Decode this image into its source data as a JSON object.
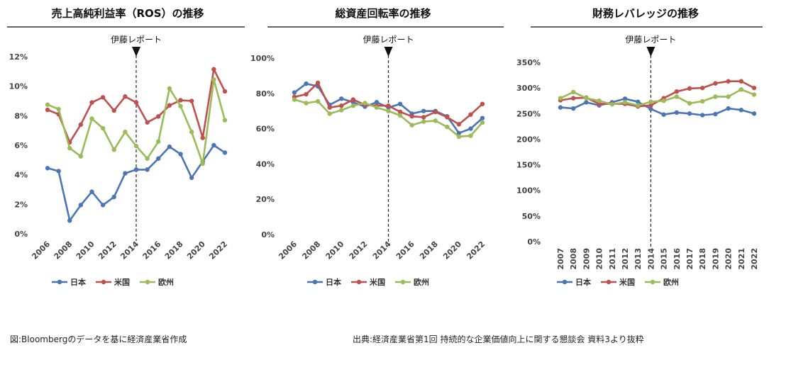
{
  "colors": {
    "japan": "#4a76b4",
    "us": "#c0504d",
    "europe": "#9bbb59",
    "rule": "#333333"
  },
  "annotation": "伊藤レポート",
  "caption_left": "図:Bloombergのデータを基に経済産業省作成",
  "caption_right": "出典:経済産業省第1回 持続的な企業価値向上に関する懇談会 資料3より抜粋",
  "chart_data": [
    {
      "type": "line",
      "title": "売上高純利益率（ROS）の推移",
      "x": [
        2006,
        2007,
        2008,
        2009,
        2010,
        2011,
        2012,
        2013,
        2014,
        2015,
        2016,
        2017,
        2018,
        2019,
        2020,
        2021,
        2022
      ],
      "xtick_labels": [
        "2006",
        "2008",
        "2010",
        "2012",
        "2014",
        "2016",
        "2018",
        "2020",
        "2022"
      ],
      "ytick_labels": [
        "0%",
        "2%",
        "4%",
        "6%",
        "8%",
        "10%",
        "12%"
      ],
      "ylim": [
        0,
        12
      ],
      "annotation_x": 2014,
      "legend": [
        "日本",
        "米国",
        "欧州"
      ],
      "series": [
        {
          "name": "日本",
          "values": [
            4.45,
            4.25,
            0.9,
            1.95,
            2.85,
            1.95,
            2.5,
            4.1,
            4.35,
            4.35,
            5.1,
            5.9,
            5.4,
            3.8,
            4.9,
            6.0,
            5.5
          ]
        },
        {
          "name": "米国",
          "values": [
            8.4,
            8.1,
            6.2,
            7.4,
            8.9,
            9.25,
            8.35,
            9.3,
            8.9,
            7.55,
            7.95,
            8.7,
            9.05,
            9.0,
            6.5,
            11.15,
            9.65
          ]
        },
        {
          "name": "欧州",
          "values": [
            8.75,
            8.45,
            5.8,
            5.25,
            7.8,
            7.15,
            5.7,
            6.9,
            5.95,
            5.1,
            6.25,
            9.85,
            8.65,
            6.9,
            4.75,
            10.45,
            7.7
          ]
        }
      ]
    },
    {
      "type": "line",
      "title": "総資産回転率の推移",
      "x": [
        2006,
        2007,
        2008,
        2009,
        2010,
        2011,
        2012,
        2013,
        2014,
        2015,
        2016,
        2017,
        2018,
        2019,
        2020,
        2021,
        2022
      ],
      "xtick_labels": [
        "2006",
        "2008",
        "2010",
        "2012",
        "2014",
        "2016",
        "2018",
        "2020",
        "2022"
      ],
      "ytick_labels": [
        "0%",
        "20%",
        "40%",
        "60%",
        "80%",
        "100%"
      ],
      "ylim": [
        0,
        100
      ],
      "annotation_x": 2014,
      "legend": [
        "日本",
        "米国",
        "欧州"
      ],
      "series": [
        {
          "name": "日本",
          "values": [
            80.5,
            85.5,
            84.0,
            73.5,
            77.0,
            75.0,
            72.5,
            75.0,
            72.0,
            74.0,
            68.5,
            70.0,
            70.0,
            67.0,
            57.5,
            60.0,
            66.0
          ]
        },
        {
          "name": "米国",
          "values": [
            78.0,
            79.5,
            86.0,
            72.0,
            73.0,
            76.5,
            73.5,
            73.0,
            73.0,
            69.5,
            67.0,
            66.5,
            69.5,
            66.5,
            62.5,
            68.0,
            74.0
          ]
        },
        {
          "name": "欧州",
          "values": [
            76.5,
            74.5,
            75.5,
            68.5,
            70.5,
            73.0,
            74.5,
            72.0,
            70.0,
            67.5,
            62.0,
            64.0,
            64.5,
            61.0,
            55.5,
            56.0,
            63.5
          ]
        }
      ]
    },
    {
      "type": "line",
      "title": "財務レバレッジの推移",
      "x": [
        2007,
        2008,
        2009,
        2010,
        2011,
        2012,
        2013,
        2014,
        2015,
        2016,
        2017,
        2018,
        2019,
        2020,
        2021,
        2022
      ],
      "xtick_labels": [
        "2007",
        "2008",
        "2009",
        "2010",
        "2011",
        "2012",
        "2013",
        "2014",
        "2015",
        "2016",
        "2017",
        "2018",
        "2019",
        "2020",
        "2021",
        "2022"
      ],
      "ytick_labels": [
        "0%",
        "50%",
        "100%",
        "150%",
        "200%",
        "250%",
        "300%",
        "350%"
      ],
      "ylim": [
        0,
        350
      ],
      "annotation_x": 2014,
      "legend": [
        "日本",
        "米国",
        "欧州"
      ],
      "series": [
        {
          "name": "日本",
          "values": [
            262,
            260,
            272,
            266,
            272,
            279,
            273,
            259,
            248,
            252,
            250,
            247,
            249,
            260,
            257,
            250
          ]
        },
        {
          "name": "米国",
          "values": [
            276,
            280,
            281,
            269,
            269,
            269,
            264,
            266,
            280,
            293,
            299,
            300,
            309,
            313,
            313,
            300
          ]
        },
        {
          "name": "欧州",
          "values": [
            280,
            292,
            280,
            275,
            268,
            272,
            266,
            273,
            275,
            283,
            270,
            274,
            283,
            283,
            297,
            287
          ]
        }
      ]
    }
  ]
}
